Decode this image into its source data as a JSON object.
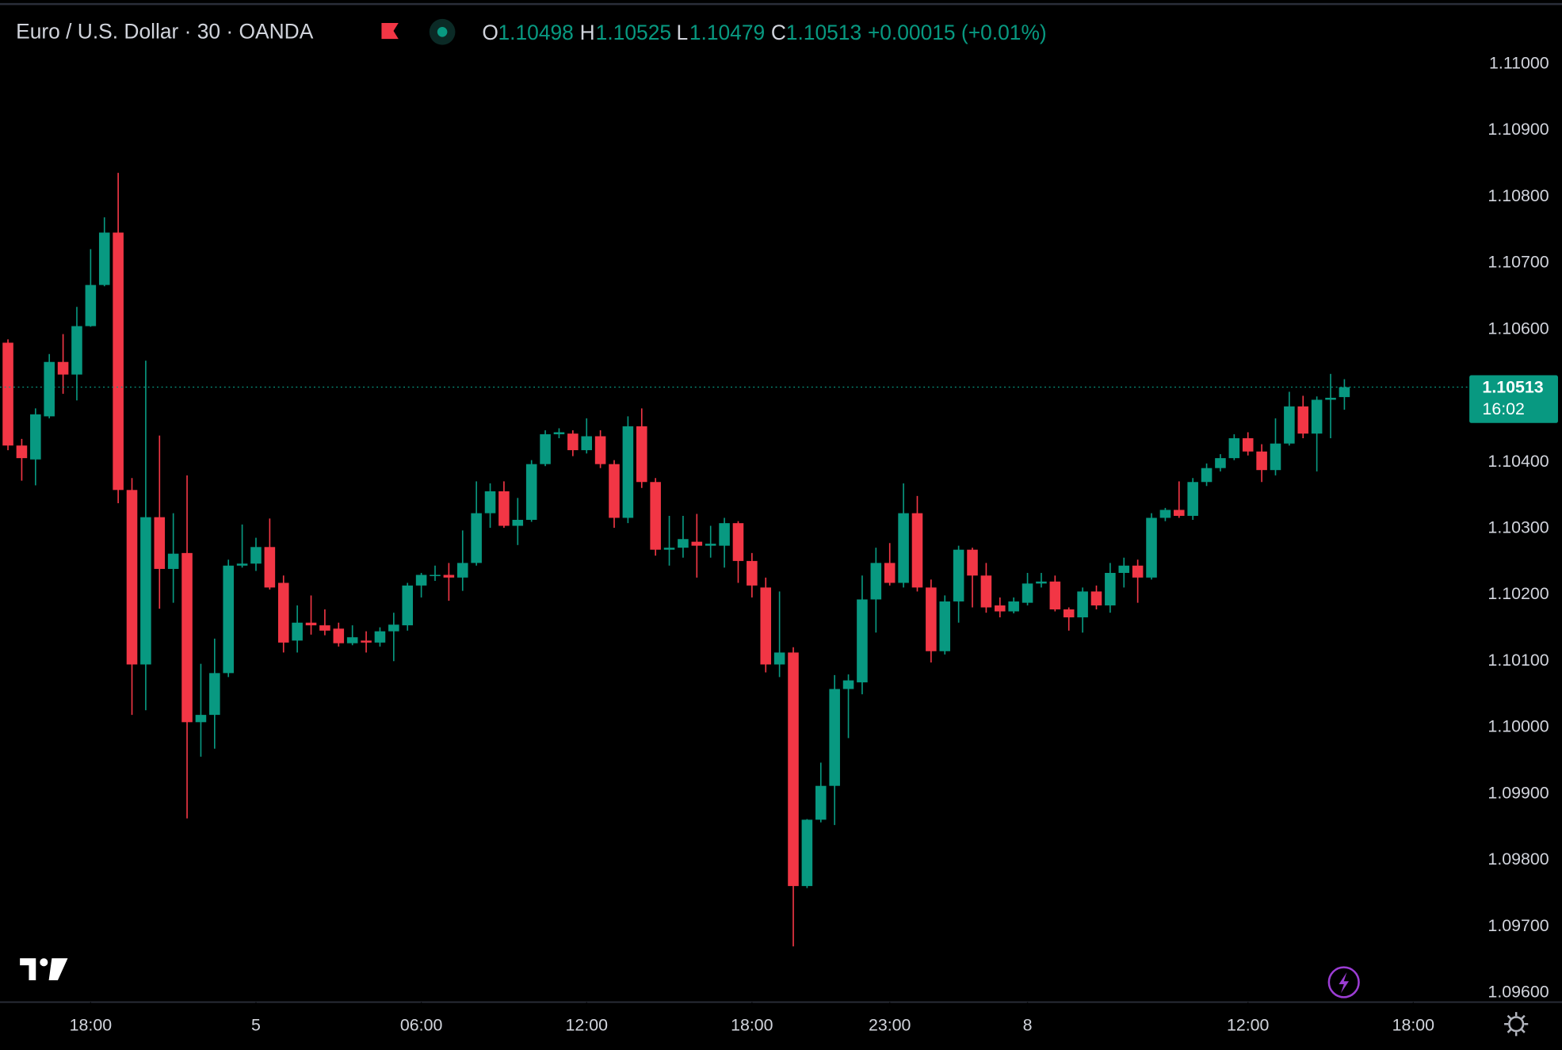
{
  "chart_data": {
    "type": "candlestick",
    "title": "Euro / U.S. Dollar · 30 · OANDA",
    "ohlc_labels": [
      "O",
      "H",
      "L",
      "C"
    ],
    "change_label": "+0.00015 (+0.01%)",
    "countdown": "16:02",
    "up_color": "#089981",
    "down_color": "#f23645",
    "grid": false,
    "open": [
      1.1058,
      1.10425,
      1.10404,
      1.10469,
      1.10551,
      1.10532,
      1.10605,
      1.10667,
      1.10746,
      1.10358,
      1.10095,
      1.10317,
      1.10239,
      1.10263,
      1.10008,
      1.10019,
      1.10082,
      1.10244,
      1.10247,
      1.10272,
      1.10218,
      1.10131,
      1.10158,
      1.10154,
      1.10149,
      1.10127,
      1.10131,
      1.10128,
      1.10145,
      1.10154,
      1.10214,
      1.10229,
      1.1023,
      1.10226,
      1.10248,
      1.10323,
      1.10356,
      1.10304,
      1.10313,
      1.10397,
      1.10442,
      1.10443,
      1.10418,
      1.10439,
      1.10397,
      1.10316,
      1.10454,
      1.1037,
      1.10268,
      1.10271,
      1.1028,
      1.10274,
      1.10274,
      1.10308,
      1.10251,
      1.10211,
      1.10095,
      1.10113,
      1.09761,
      1.09861,
      1.09912,
      1.10058,
      1.10068,
      1.10193,
      1.10248,
      1.10218,
      1.10323,
      1.10211,
      1.10115,
      1.1019,
      1.10268,
      1.10229,
      1.10184,
      1.10175,
      1.10188,
      1.10217,
      1.1022,
      1.10178,
      1.10166,
      1.10205,
      1.10184,
      1.10233,
      1.10244,
      1.10226,
      1.10316,
      1.10328,
      1.10319,
      1.1037,
      1.10391,
      1.10406,
      1.10436,
      1.10416,
      1.10388,
      1.10428,
      1.10484,
      1.10443,
      1.10494,
      1.10498
    ],
    "high": [
      1.10585,
      1.10435,
      1.10481,
      1.10563,
      1.10593,
      1.10634,
      1.10721,
      1.10769,
      1.10836,
      1.10376,
      1.10553,
      1.1044,
      1.10323,
      1.1038,
      1.10096,
      1.10134,
      1.10253,
      1.10306,
      1.10286,
      1.10315,
      1.10229,
      1.10184,
      1.10199,
      1.10178,
      1.10158,
      1.10154,
      1.10145,
      1.10151,
      1.10173,
      1.10218,
      1.10233,
      1.10244,
      1.10248,
      1.10297,
      1.10371,
      1.10368,
      1.10371,
      1.10346,
      1.10403,
      1.10448,
      1.10451,
      1.10448,
      1.10466,
      1.10448,
      1.10403,
      1.10469,
      1.10481,
      1.10376,
      1.10319,
      1.10319,
      1.10322,
      1.10304,
      1.10316,
      1.10311,
      1.10263,
      1.10226,
      1.10205,
      1.10121,
      1.09862,
      1.09947,
      1.10079,
      1.1008,
      1.10229,
      1.10271,
      1.10278,
      1.10368,
      1.10349,
      1.10223,
      1.10199,
      1.10274,
      1.10271,
      1.10248,
      1.10196,
      1.10196,
      1.10233,
      1.10233,
      1.10229,
      1.10181,
      1.10211,
      1.10214,
      1.10248,
      1.10256,
      1.10253,
      1.10323,
      1.10331,
      1.10371,
      1.10376,
      1.10398,
      1.10412,
      1.10442,
      1.10445,
      1.10427,
      1.10466,
      1.10506,
      1.105,
      1.10499,
      1.10533,
      1.10525
    ],
    "low": [
      1.10418,
      1.10372,
      1.10365,
      1.10466,
      1.10503,
      1.10493,
      1.10604,
      1.10665,
      1.10338,
      1.10019,
      1.10026,
      1.10179,
      1.10188,
      1.09863,
      1.09956,
      1.09968,
      1.10076,
      1.10241,
      1.10236,
      1.10208,
      1.10113,
      1.10113,
      1.1014,
      1.10139,
      1.10122,
      1.10124,
      1.10113,
      1.10122,
      1.101,
      1.10146,
      1.10196,
      1.10221,
      1.10191,
      1.10206,
      1.10244,
      1.10301,
      1.10301,
      1.10275,
      1.1031,
      1.10394,
      1.10436,
      1.10409,
      1.10413,
      1.10391,
      1.10301,
      1.10308,
      1.10361,
      1.10259,
      1.10244,
      1.10256,
      1.10226,
      1.10256,
      1.10241,
      1.10218,
      1.10196,
      1.10083,
      1.10076,
      1.0967,
      1.09758,
      1.09857,
      1.09853,
      1.09984,
      1.1005,
      1.10143,
      1.10214,
      1.10211,
      1.10205,
      1.10098,
      1.1011,
      1.10158,
      1.10181,
      1.10173,
      1.10166,
      1.10172,
      1.10184,
      1.10211,
      1.10175,
      1.10146,
      1.10143,
      1.10178,
      1.10173,
      1.10211,
      1.10188,
      1.10223,
      1.10311,
      1.10316,
      1.10313,
      1.10364,
      1.10386,
      1.10403,
      1.1041,
      1.1037,
      1.1038,
      1.10425,
      1.10436,
      1.10386,
      1.10436,
      1.10479
    ],
    "close": [
      1.10425,
      1.10406,
      1.10472,
      1.10551,
      1.10532,
      1.10605,
      1.10667,
      1.10746,
      1.10358,
      1.10095,
      1.10317,
      1.10239,
      1.10262,
      1.10008,
      1.10019,
      1.10082,
      1.10244,
      1.10247,
      1.10272,
      1.10211,
      1.10128,
      1.10158,
      1.10154,
      1.10146,
      1.10127,
      1.10136,
      1.10128,
      1.10145,
      1.10155,
      1.10214,
      1.1023,
      1.1023,
      1.10226,
      1.10248,
      1.10323,
      1.10356,
      1.10304,
      1.10313,
      1.10397,
      1.10442,
      1.10445,
      1.10418,
      1.10439,
      1.10397,
      1.10316,
      1.10454,
      1.1037,
      1.10268,
      1.10271,
      1.10284,
      1.10274,
      1.10277,
      1.10308,
      1.10251,
      1.10214,
      1.10095,
      1.10113,
      1.09761,
      1.09861,
      1.09912,
      1.10058,
      1.10071,
      1.10193,
      1.10248,
      1.10218,
      1.10323,
      1.10211,
      1.10115,
      1.1019,
      1.10268,
      1.10229,
      1.10181,
      1.10175,
      1.1019,
      1.10217,
      1.1022,
      1.10178,
      1.10166,
      1.10205,
      1.10184,
      1.10233,
      1.10244,
      1.10226,
      1.10316,
      1.10328,
      1.10319,
      1.1037,
      1.10391,
      1.10406,
      1.10436,
      1.10416,
      1.10388,
      1.10428,
      1.10484,
      1.10443,
      1.10494,
      1.10497,
      1.10513
    ],
    "xlim": [
      -0.578,
      106.07
    ],
    "xticks": [
      {
        "value": 6,
        "label": "18:00"
      },
      {
        "value": 18,
        "label": "5"
      },
      {
        "value": 30,
        "label": "06:00"
      },
      {
        "value": 42,
        "label": "12:00"
      },
      {
        "value": 54,
        "label": "18:00"
      },
      {
        "value": 64,
        "label": "23:00"
      },
      {
        "value": 74,
        "label": "8"
      },
      {
        "value": 90,
        "label": "12:00"
      },
      {
        "value": 102,
        "label": "18:00"
      }
    ],
    "ylim": [
      1.09586,
      1.11089
    ],
    "yticks": [
      {
        "value": 1.096,
        "label": "1.09600"
      },
      {
        "value": 1.097,
        "label": "1.09700"
      },
      {
        "value": 1.098,
        "label": "1.09800"
      },
      {
        "value": 1.099,
        "label": "1.09900"
      },
      {
        "value": 1.1,
        "label": "1.10000"
      },
      {
        "value": 1.101,
        "label": "1.10100"
      },
      {
        "value": 1.102,
        "label": "1.10200"
      },
      {
        "value": 1.103,
        "label": "1.10300"
      },
      {
        "value": 1.104,
        "label": "1.10400"
      },
      {
        "value": 1.105,
        "label": "1.10500"
      },
      {
        "value": 1.106,
        "label": "1.10600"
      },
      {
        "value": 1.107,
        "label": "1.10700"
      },
      {
        "value": 1.108,
        "label": "1.10800"
      },
      {
        "value": 1.109,
        "label": "1.10900"
      },
      {
        "value": 1.11,
        "label": "1.11000"
      }
    ]
  }
}
